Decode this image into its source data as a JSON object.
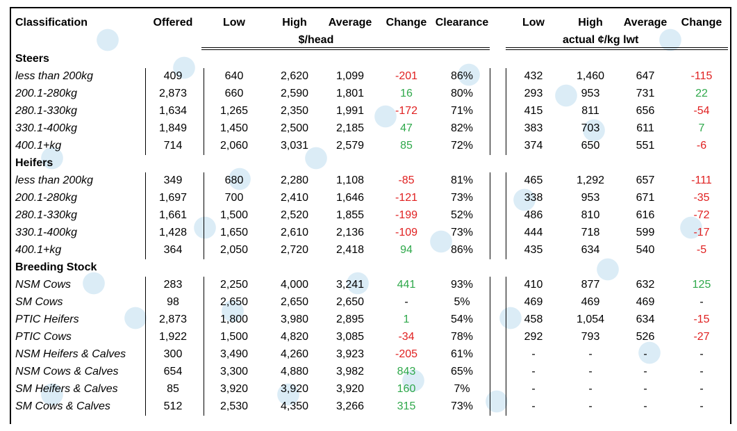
{
  "header": {
    "classification": "Classification",
    "offered": "Offered",
    "low": "Low",
    "high": "High",
    "average": "Average",
    "change": "Change",
    "clearance": "Clearance",
    "low2": "Low",
    "high2": "High",
    "average2": "Average",
    "change2": "Change",
    "unit1": "$/head",
    "unit2": "actual ¢/kg lwt"
  },
  "sections": [
    {
      "title": "Steers",
      "rows": [
        {
          "label": "less than 200kg",
          "offered": "409",
          "low": "640",
          "high": "2,620",
          "avg": "1,099",
          "change": "-201",
          "clearance": "86%",
          "low2": "432",
          "high2": "1,460",
          "avg2": "647",
          "change2": "-115"
        },
        {
          "label": "200.1-280kg",
          "offered": "2,873",
          "low": "660",
          "high": "2,590",
          "avg": "1,801",
          "change": "16",
          "clearance": "80%",
          "low2": "293",
          "high2": "953",
          "avg2": "731",
          "change2": "22"
        },
        {
          "label": "280.1-330kg",
          "offered": "1,634",
          "low": "1,265",
          "high": "2,350",
          "avg": "1,991",
          "change": "-172",
          "clearance": "71%",
          "low2": "415",
          "high2": "811",
          "avg2": "656",
          "change2": "-54"
        },
        {
          "label": "330.1-400kg",
          "offered": "1,849",
          "low": "1,450",
          "high": "2,500",
          "avg": "2,185",
          "change": "47",
          "clearance": "82%",
          "low2": "383",
          "high2": "703",
          "avg2": "611",
          "change2": "7"
        },
        {
          "label": "400.1+kg",
          "offered": "714",
          "low": "2,060",
          "high": "3,031",
          "avg": "2,579",
          "change": "85",
          "clearance": "72%",
          "low2": "374",
          "high2": "650",
          "avg2": "551",
          "change2": "-6"
        }
      ]
    },
    {
      "title": "Heifers",
      "rows": [
        {
          "label": "less than 200kg",
          "offered": "349",
          "low": "680",
          "high": "2,280",
          "avg": "1,108",
          "change": "-85",
          "clearance": "81%",
          "low2": "465",
          "high2": "1,292",
          "avg2": "657",
          "change2": "-111"
        },
        {
          "label": "200.1-280kg",
          "offered": "1,697",
          "low": "700",
          "high": "2,410",
          "avg": "1,646",
          "change": "-121",
          "clearance": "73%",
          "low2": "338",
          "high2": "953",
          "avg2": "671",
          "change2": "-35"
        },
        {
          "label": "280.1-330kg",
          "offered": "1,661",
          "low": "1,500",
          "high": "2,520",
          "avg": "1,855",
          "change": "-199",
          "clearance": "52%",
          "low2": "486",
          "high2": "810",
          "avg2": "616",
          "change2": "-72"
        },
        {
          "label": "330.1-400kg",
          "offered": "1,428",
          "low": "1,650",
          "high": "2,610",
          "avg": "2,136",
          "change": "-109",
          "clearance": "73%",
          "low2": "444",
          "high2": "718",
          "avg2": "599",
          "change2": "-17"
        },
        {
          "label": "400.1+kg",
          "offered": "364",
          "low": "2,050",
          "high": "2,720",
          "avg": "2,418",
          "change": "94",
          "clearance": "86%",
          "low2": "435",
          "high2": "634",
          "avg2": "540",
          "change2": "-5"
        }
      ]
    },
    {
      "title": "Breeding Stock",
      "rows": [
        {
          "label": "NSM Cows",
          "offered": "283",
          "low": "2,250",
          "high": "4,000",
          "avg": "3,241",
          "change": "441",
          "clearance": "93%",
          "low2": "410",
          "high2": "877",
          "avg2": "632",
          "change2": "125"
        },
        {
          "label": "SM Cows",
          "offered": "98",
          "low": "2,650",
          "high": "2,650",
          "avg": "2,650",
          "change": "-",
          "clearance": "5%",
          "low2": "469",
          "high2": "469",
          "avg2": "469",
          "change2": "-"
        },
        {
          "label": "PTIC Heifers",
          "offered": "2,873",
          "low": "1,800",
          "high": "3,980",
          "avg": "2,895",
          "change": "1",
          "clearance": "54%",
          "low2": "458",
          "high2": "1,054",
          "avg2": "634",
          "change2": "-15"
        },
        {
          "label": "PTIC Cows",
          "offered": "1,922",
          "low": "1,500",
          "high": "4,820",
          "avg": "3,085",
          "change": "-34",
          "clearance": "78%",
          "low2": "292",
          "high2": "793",
          "avg2": "526",
          "change2": "-27"
        },
        {
          "label": "NSM Heifers & Calves",
          "offered": "300",
          "low": "3,490",
          "high": "4,260",
          "avg": "3,923",
          "change": "-205",
          "clearance": "61%",
          "low2": "-",
          "high2": "-",
          "avg2": "-",
          "change2": "-"
        },
        {
          "label": "NSM Cows & Calves",
          "offered": "654",
          "low": "3,300",
          "high": "4,880",
          "avg": "3,982",
          "change": "843",
          "clearance": "65%",
          "low2": "-",
          "high2": "-",
          "avg2": "-",
          "change2": "-"
        },
        {
          "label": "SM Heifers & Calves",
          "offered": "85",
          "low": "3,920",
          "high": "3,920",
          "avg": "3,920",
          "change": "160",
          "clearance": "7%",
          "low2": "-",
          "high2": "-",
          "avg2": "-",
          "change2": "-"
        },
        {
          "label": "SM Cows & Calves",
          "offered": "512",
          "low": "2,530",
          "high": "4,350",
          "avg": "3,266",
          "change": "315",
          "clearance": "73%",
          "low2": "-",
          "high2": "-",
          "avg2": "-",
          "change2": "-"
        }
      ]
    }
  ],
  "colors": {
    "positive": "#2ea84a",
    "negative": "#e02020",
    "watermark": "#b7d9ee"
  }
}
